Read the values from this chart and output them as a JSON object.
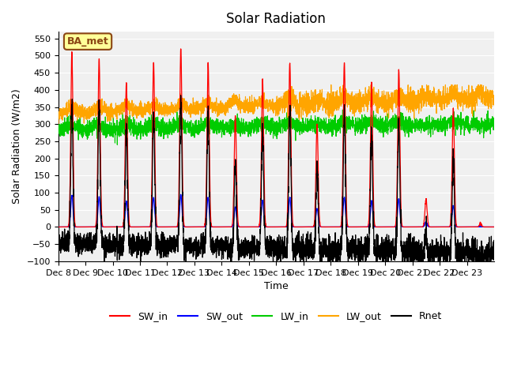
{
  "title": "Solar Radiation",
  "ylabel": "Solar Radiation (W/m2)",
  "xlabel": "Time",
  "ylim": [
    -100,
    570
  ],
  "yticks": [
    -100,
    -50,
    0,
    50,
    100,
    150,
    200,
    250,
    300,
    350,
    400,
    450,
    500,
    550
  ],
  "x_tick_labels": [
    "Dec 8",
    "Dec 9",
    "Dec 10",
    "Dec 11",
    "Dec 12",
    "Dec 13",
    "Dec 14",
    "Dec 15",
    "Dec 16",
    "Dec 17",
    "Dec 18",
    "Dec 19",
    "Dec 20",
    "Dec 21",
    "Dec 22",
    "Dec 23"
  ],
  "x_tick_positions": [
    0,
    1,
    2,
    3,
    4,
    5,
    6,
    7,
    8,
    9,
    10,
    11,
    12,
    13,
    14,
    15
  ],
  "annotation_text": "BA_met",
  "annotation_color": "#8B4513",
  "annotation_bg": "#FFFF99",
  "colors": {
    "SW_in": "#FF0000",
    "SW_out": "#0000FF",
    "LW_in": "#00CC00",
    "LW_out": "#FFA500",
    "Rnet": "#000000"
  },
  "legend_labels": [
    "SW_in",
    "SW_out",
    "LW_in",
    "LW_out",
    "Rnet"
  ],
  "num_days": 16,
  "n_points": 3840,
  "plot_bg": "#f0f0f0"
}
